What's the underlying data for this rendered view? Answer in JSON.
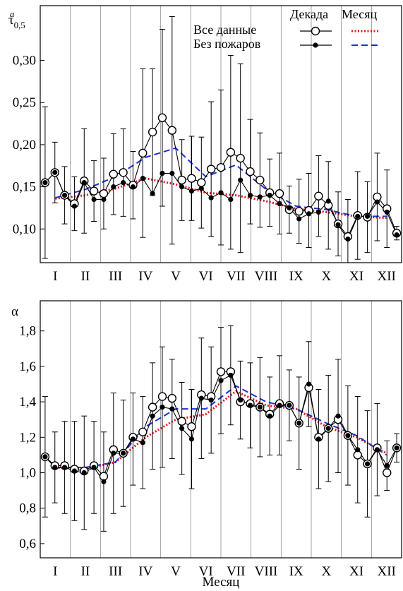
{
  "chart_data": [
    {
      "type": "line",
      "ylabel": "τ",
      "ylabel_sub": "0,5",
      "ylabel_sup": "a",
      "xlabel": "",
      "ylim": [
        0.06,
        0.365
      ],
      "yticks": [
        0.1,
        0.15,
        0.2,
        0.25,
        0.3
      ],
      "ytick_labels": [
        "0,10",
        "0,15",
        "0,20",
        "0,25",
        "0,30"
      ],
      "grid_vertical": true,
      "legend_position": "top-right",
      "legend": {
        "header_decade": "Декада",
        "header_month": "Месяц",
        "row_all": "Все данные",
        "row_nofire": "Без пожаров"
      },
      "months": [
        "I",
        "II",
        "III",
        "IV",
        "V",
        "VI",
        "VII",
        "VIII",
        "IX",
        "X",
        "XI",
        "XII"
      ],
      "series": [
        {
          "name": "Все данные",
          "kind": "decade",
          "marker": "open-circle",
          "values": [
            0.155,
            0.167,
            0.14,
            0.13,
            0.157,
            0.145,
            0.142,
            0.165,
            0.167,
            0.152,
            0.19,
            0.215,
            0.232,
            0.217,
            0.158,
            0.16,
            0.155,
            0.171,
            0.173,
            0.191,
            0.184,
            0.168,
            0.158,
            0.143,
            0.142,
            0.123,
            0.121,
            0.122,
            0.139,
            0.128,
            0.106,
            0.091,
            0.116,
            0.114,
            0.138,
            0.124,
            0.095
          ],
          "err": [
            0.09,
            0.036,
            0.034,
            0.032,
            0.062,
            0.036,
            0.042,
            0.048,
            0.052,
            0.04,
            0.1,
            0.075,
            0.105,
            0.135,
            0.048,
            0.05,
            0.054,
            0.08,
            0.092,
            0.115,
            0.112,
            0.062,
            0.056,
            0.04,
            0.048,
            0.028,
            0.038,
            0.044,
            0.048,
            0.052,
            0.038,
            0.044,
            0.052,
            0.042,
            0.052,
            0.046,
            0.008
          ]
        },
        {
          "name": "Без пожаров",
          "kind": "decade",
          "marker": "filled-circle",
          "values": [
            0.155,
            0.167,
            0.14,
            0.127,
            0.155,
            0.135,
            0.135,
            0.15,
            0.155,
            0.15,
            0.16,
            0.142,
            0.166,
            0.166,
            0.15,
            0.145,
            0.148,
            0.137,
            0.143,
            0.135,
            0.158,
            0.14,
            0.138,
            0.14,
            0.13,
            0.125,
            0.112,
            0.118,
            0.12,
            0.133,
            0.105,
            0.088,
            0.115,
            0.115,
            0.132,
            0.12,
            0.093
          ]
        },
        {
          "name": "Все данные",
          "kind": "month",
          "style": "red-dotted",
          "values": [
            0.136,
            0.14,
            0.148,
            0.16,
            0.153,
            0.143,
            0.14,
            0.133,
            0.124,
            0.12,
            0.115,
            0.113
          ]
        },
        {
          "name": "Без пожаров",
          "kind": "month",
          "style": "blue-dashed",
          "values": [
            0.137,
            0.147,
            0.162,
            0.185,
            0.196,
            0.162,
            0.176,
            0.147,
            0.127,
            0.123,
            0.115,
            0.115
          ]
        }
      ]
    },
    {
      "type": "line",
      "ylabel": "α",
      "xlabel": "Месяц",
      "ylim": [
        0.52,
        1.97
      ],
      "yticks": [
        0.6,
        0.8,
        1.0,
        1.2,
        1.4,
        1.6,
        1.8
      ],
      "ytick_labels": [
        "0,6",
        "0,8",
        "1,0",
        "1,2",
        "1,4",
        "1,6",
        "1,8"
      ],
      "grid_vertical": true,
      "months": [
        "I",
        "II",
        "III",
        "IV",
        "V",
        "VI",
        "VII",
        "VIII",
        "IX",
        "X",
        "XI",
        "XII"
      ],
      "series": [
        {
          "name": "Все данные",
          "kind": "decade",
          "marker": "open-circle",
          "values": [
            1.09,
            1.04,
            1.04,
            1.02,
            1.01,
            1.04,
            0.98,
            1.13,
            1.11,
            1.2,
            1.23,
            1.37,
            1.43,
            1.42,
            1.29,
            1.26,
            1.44,
            1.43,
            1.57,
            1.57,
            1.4,
            1.39,
            1.37,
            1.33,
            1.39,
            1.38,
            1.28,
            1.48,
            1.2,
            1.25,
            1.3,
            1.21,
            1.1,
            1.05,
            1.14,
            1.0,
            1.14
          ]
        },
        {
          "name": "Без пожаров",
          "kind": "decade",
          "marker": "filled-circle",
          "values": [
            1.09,
            1.03,
            1.03,
            1.01,
            1.0,
            1.03,
            0.95,
            1.11,
            1.11,
            1.19,
            1.17,
            1.32,
            1.37,
            1.36,
            1.25,
            1.19,
            1.42,
            1.41,
            1.52,
            1.55,
            1.41,
            1.38,
            1.37,
            1.32,
            1.38,
            1.38,
            1.28,
            1.5,
            1.19,
            1.25,
            1.32,
            1.21,
            1.13,
            1.05,
            1.13,
            1.04,
            1.14
          ],
          "err": [
            0.34,
            0.2,
            0.26,
            0.28,
            0.32,
            0.26,
            0.28,
            0.34,
            0.3,
            0.26,
            0.26,
            0.3,
            0.34,
            0.28,
            0.26,
            0.28,
            0.34,
            0.3,
            0.3,
            0.28,
            0.22,
            0.24,
            0.28,
            0.22,
            0.28,
            0.2,
            0.26,
            0.24,
            0.28,
            0.3,
            0.32,
            0.28,
            0.3,
            0.3,
            0.26,
            0.14,
            0.08
          ]
        },
        {
          "name": "Все данные",
          "kind": "month",
          "style": "red-dotted",
          "values": [
            1.03,
            1.02,
            1.06,
            1.2,
            1.3,
            1.33,
            1.46,
            1.38,
            1.36,
            1.26,
            1.2,
            1.11
          ]
        },
        {
          "name": "Без пожаров",
          "kind": "month",
          "style": "blue-dashed",
          "values": [
            1.03,
            1.03,
            1.06,
            1.26,
            1.36,
            1.36,
            1.49,
            1.4,
            1.36,
            1.28,
            1.21,
            1.1
          ]
        }
      ]
    }
  ]
}
